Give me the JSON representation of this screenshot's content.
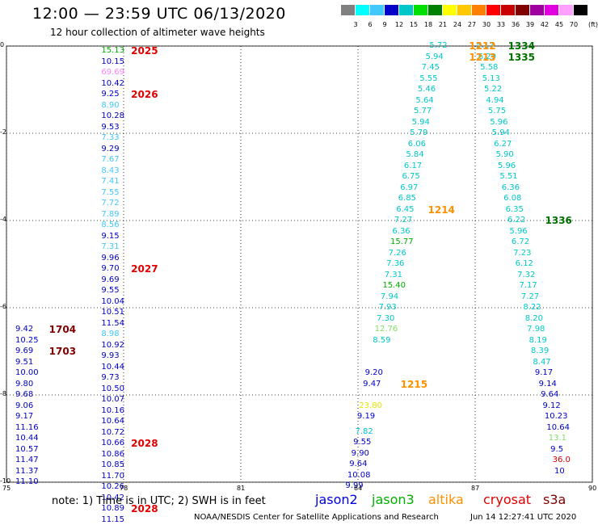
{
  "header": {
    "title": "12:00 — 23:59 UTC 06/13/2020",
    "subtitle": "12 hour collection of altimeter wave heights"
  },
  "color_scale": {
    "unit": "(ft)",
    "labels": [
      "3",
      "6",
      "9",
      "12",
      "15",
      "18",
      "21",
      "24",
      "27",
      "30",
      "33",
      "36",
      "39",
      "42",
      "45",
      "70"
    ],
    "colors": [
      "#808080",
      "#00ffff",
      "#40c8ff",
      "#0000c8",
      "#00c8c8",
      "#00e000",
      "#008000",
      "#ffff00",
      "#ffc800",
      "#ff8000",
      "#ff0000",
      "#c80000",
      "#800000",
      "#a000a0",
      "#e000e0",
      "#ffa0ff",
      "#000000"
    ]
  },
  "map": {
    "lon_ticks": [
      "75",
      "78",
      "81",
      "84",
      "87",
      "90"
    ],
    "lat_ticks": [
      "0",
      "-2",
      "-4",
      "-6",
      "-8",
      "-10"
    ],
    "lon_range": [
      75,
      90
    ],
    "lat_range": [
      -10,
      0
    ],
    "grid": true,
    "observations": [
      {
        "v": "15.13",
        "lon": 77.8,
        "lat": -0.12,
        "c": "#00b000"
      },
      {
        "v": "10.15",
        "lon": 77.8,
        "lat": -0.37,
        "c": "#0000c8"
      },
      {
        "v": "69.69",
        "lon": 77.8,
        "lat": -0.62,
        "c": "#ff80ff"
      },
      {
        "v": "10.42",
        "lon": 77.8,
        "lat": -0.87,
        "c": "#0000c8"
      },
      {
        "v": "9.25",
        "lon": 77.8,
        "lat": -1.12,
        "c": "#0000c8"
      },
      {
        "v": "8.90",
        "lon": 77.8,
        "lat": -1.37,
        "c": "#40c8ff"
      },
      {
        "v": "10.28",
        "lon": 77.8,
        "lat": -1.62,
        "c": "#0000c8"
      },
      {
        "v": "9.53",
        "lon": 77.8,
        "lat": -1.87,
        "c": "#0000c8"
      },
      {
        "v": "7.33",
        "lon": 77.8,
        "lat": -2.12,
        "c": "#40c8ff"
      },
      {
        "v": "9.29",
        "lon": 77.8,
        "lat": -2.37,
        "c": "#0000c8"
      },
      {
        "v": "7.67",
        "lon": 77.8,
        "lat": -2.62,
        "c": "#40c8ff"
      },
      {
        "v": "8.43",
        "lon": 77.8,
        "lat": -2.87,
        "c": "#40c8ff"
      },
      {
        "v": "7.41",
        "lon": 77.8,
        "lat": -3.12,
        "c": "#40c8ff"
      },
      {
        "v": "7.55",
        "lon": 77.8,
        "lat": -3.37,
        "c": "#40c8ff"
      },
      {
        "v": "7.72",
        "lon": 77.8,
        "lat": -3.62,
        "c": "#40c8ff"
      },
      {
        "v": "7.89",
        "lon": 77.8,
        "lat": -3.87,
        "c": "#40c8ff"
      },
      {
        "v": "8.56",
        "lon": 77.8,
        "lat": -4.12,
        "c": "#40c8ff"
      },
      {
        "v": "9.15",
        "lon": 77.8,
        "lat": -4.37,
        "c": "#0000c8"
      },
      {
        "v": "7.31",
        "lon": 77.8,
        "lat": -4.62,
        "c": "#40c8ff"
      },
      {
        "v": "9.96",
        "lon": 77.8,
        "lat": -4.87,
        "c": "#0000c8"
      },
      {
        "v": "9.70",
        "lon": 77.8,
        "lat": -5.12,
        "c": "#0000c8"
      },
      {
        "v": "9.69",
        "lon": 77.8,
        "lat": -5.37,
        "c": "#0000c8"
      },
      {
        "v": "9.55",
        "lon": 77.8,
        "lat": -5.62,
        "c": "#0000c8"
      },
      {
        "v": "10.04",
        "lon": 77.8,
        "lat": -5.87,
        "c": "#0000c8"
      },
      {
        "v": "10.51",
        "lon": 77.8,
        "lat": -6.12,
        "c": "#0000c8"
      },
      {
        "v": "11.54",
        "lon": 77.8,
        "lat": -6.37,
        "c": "#0000c8"
      },
      {
        "v": "8.98",
        "lon": 77.8,
        "lat": -6.62,
        "c": "#40c8ff"
      },
      {
        "v": "10.92",
        "lon": 77.8,
        "lat": -6.87,
        "c": "#0000c8"
      },
      {
        "v": "9.93",
        "lon": 77.8,
        "lat": -7.12,
        "c": "#0000c8"
      },
      {
        "v": "10.44",
        "lon": 77.8,
        "lat": -7.37,
        "c": "#0000c8"
      },
      {
        "v": "9.73",
        "lon": 77.8,
        "lat": -7.62,
        "c": "#0000c8"
      },
      {
        "v": "10.50",
        "lon": 77.8,
        "lat": -7.87,
        "c": "#0000c8"
      },
      {
        "v": "10.07",
        "lon": 77.8,
        "lat": -8.12,
        "c": "#0000c8"
      },
      {
        "v": "10.16",
        "lon": 77.8,
        "lat": -8.37,
        "c": "#0000c8"
      },
      {
        "v": "10.64",
        "lon": 77.8,
        "lat": -8.62,
        "c": "#0000c8"
      },
      {
        "v": "10.72",
        "lon": 77.8,
        "lat": -8.87,
        "c": "#0000c8"
      },
      {
        "v": "10.66",
        "lon": 77.8,
        "lat": -9.12,
        "c": "#0000c8"
      },
      {
        "v": "10.86",
        "lon": 77.8,
        "lat": -9.37,
        "c": "#0000c8"
      },
      {
        "v": "10.85",
        "lon": 77.8,
        "lat": -9.62,
        "c": "#0000c8"
      },
      {
        "v": "11.70",
        "lon": 77.8,
        "lat": -9.87,
        "c": "#0000c8"
      },
      {
        "v": "10.26",
        "lon": 77.8,
        "lat": -10.12,
        "c": "#0000c8"
      },
      {
        "v": "10.42",
        "lon": 77.8,
        "lat": -10.37,
        "c": "#0000c8"
      },
      {
        "v": "10.89",
        "lon": 77.8,
        "lat": -10.62,
        "c": "#0000c8"
      },
      {
        "v": "11.15",
        "lon": 77.8,
        "lat": -10.87,
        "c": "#0000c8"
      },
      {
        "v": "9.42",
        "lon": 75.6,
        "lat": -6.5,
        "c": "#0000c8"
      },
      {
        "v": "10.25",
        "lon": 75.6,
        "lat": -6.75,
        "c": "#0000c8"
      },
      {
        "v": "9.69",
        "lon": 75.6,
        "lat": -7.0,
        "c": "#0000c8"
      },
      {
        "v": "9.51",
        "lon": 75.6,
        "lat": -7.25,
        "c": "#0000c8"
      },
      {
        "v": "10.00",
        "lon": 75.6,
        "lat": -7.5,
        "c": "#0000c8"
      },
      {
        "v": "9.80",
        "lon": 75.6,
        "lat": -7.75,
        "c": "#0000c8"
      },
      {
        "v": "9.68",
        "lon": 75.6,
        "lat": -8.0,
        "c": "#0000c8"
      },
      {
        "v": "9.06",
        "lon": 75.6,
        "lat": -8.25,
        "c": "#0000c8"
      },
      {
        "v": "9.17",
        "lon": 75.6,
        "lat": -8.5,
        "c": "#0000c8"
      },
      {
        "v": "11.16",
        "lon": 75.6,
        "lat": -8.75,
        "c": "#0000c8"
      },
      {
        "v": "10.44",
        "lon": 75.6,
        "lat": -9.0,
        "c": "#0000c8"
      },
      {
        "v": "10.57",
        "lon": 75.6,
        "lat": -9.25,
        "c": "#0000c8"
      },
      {
        "v": "11.47",
        "lon": 75.6,
        "lat": -9.5,
        "c": "#0000c8"
      },
      {
        "v": "11.37",
        "lon": 75.6,
        "lat": -9.75,
        "c": "#0000c8"
      },
      {
        "v": "11.10",
        "lon": 75.6,
        "lat": -10.0,
        "c": "#0000c8"
      },
      {
        "v": "5.72",
        "lon": 86.2,
        "lat": 0.0,
        "c": "#00c8c8"
      },
      {
        "v": "5.94",
        "lon": 86.1,
        "lat": -0.25,
        "c": "#00c8c8"
      },
      {
        "v": "7.45",
        "lon": 86.0,
        "lat": -0.5,
        "c": "#00c8c8"
      },
      {
        "v": "5.55",
        "lon": 85.95,
        "lat": -0.75,
        "c": "#00c8c8"
      },
      {
        "v": "5.46",
        "lon": 85.9,
        "lat": -1.0,
        "c": "#00c8c8"
      },
      {
        "v": "5.64",
        "lon": 85.85,
        "lat": -1.25,
        "c": "#00c8c8"
      },
      {
        "v": "5.77",
        "lon": 85.8,
        "lat": -1.5,
        "c": "#00c8c8"
      },
      {
        "v": "5.94",
        "lon": 85.75,
        "lat": -1.75,
        "c": "#00c8c8"
      },
      {
        "v": "5.79",
        "lon": 85.7,
        "lat": -2.0,
        "c": "#00c8c8"
      },
      {
        "v": "6.06",
        "lon": 85.65,
        "lat": -2.25,
        "c": "#00c8c8"
      },
      {
        "v": "5.84",
        "lon": 85.6,
        "lat": -2.5,
        "c": "#00c8c8"
      },
      {
        "v": "6.17",
        "lon": 85.55,
        "lat": -2.75,
        "c": "#00c8c8"
      },
      {
        "v": "6.75",
        "lon": 85.5,
        "lat": -3.0,
        "c": "#00c8c8"
      },
      {
        "v": "6.97",
        "lon": 85.45,
        "lat": -3.25,
        "c": "#00c8c8"
      },
      {
        "v": "6.85",
        "lon": 85.4,
        "lat": -3.5,
        "c": "#00c8c8"
      },
      {
        "v": "6.45",
        "lon": 85.35,
        "lat": -3.75,
        "c": "#00c8c8"
      },
      {
        "v": "7.27",
        "lon": 85.3,
        "lat": -4.0,
        "c": "#00c8c8"
      },
      {
        "v": "6.36",
        "lon": 85.25,
        "lat": -4.25,
        "c": "#00c8c8"
      },
      {
        "v": "15.77",
        "lon": 85.2,
        "lat": -4.5,
        "c": "#00b000"
      },
      {
        "v": "7.26",
        "lon": 85.15,
        "lat": -4.75,
        "c": "#00c8c8"
      },
      {
        "v": "7.36",
        "lon": 85.1,
        "lat": -5.0,
        "c": "#00c8c8"
      },
      {
        "v": "7.31",
        "lon": 85.05,
        "lat": -5.25,
        "c": "#00c8c8"
      },
      {
        "v": "15.40",
        "lon": 85.0,
        "lat": -5.5,
        "c": "#00b000"
      },
      {
        "v": "7.94",
        "lon": 84.95,
        "lat": -5.75,
        "c": "#00c8c8"
      },
      {
        "v": "7.93",
        "lon": 84.9,
        "lat": -6.0,
        "c": "#00c8c8"
      },
      {
        "v": "7.30",
        "lon": 84.85,
        "lat": -6.25,
        "c": "#00c8c8"
      },
      {
        "v": "12.76",
        "lon": 84.8,
        "lat": -6.5,
        "c": "#80e060"
      },
      {
        "v": "8.59",
        "lon": 84.75,
        "lat": -6.75,
        "c": "#00c8c8"
      },
      {
        "v": "9.20",
        "lon": 84.55,
        "lat": -7.5,
        "c": "#0000c8"
      },
      {
        "v": "9.47",
        "lon": 84.5,
        "lat": -7.75,
        "c": "#0000c8"
      },
      {
        "v": "23.80",
        "lon": 84.4,
        "lat": -8.25,
        "c": "#e6e600"
      },
      {
        "v": "9.19",
        "lon": 84.35,
        "lat": -8.5,
        "c": "#0000c8"
      },
      {
        "v": "7.82",
        "lon": 84.3,
        "lat": -8.85,
        "c": "#00c8c8"
      },
      {
        "v": "9.55",
        "lon": 84.25,
        "lat": -9.1,
        "c": "#0000c8"
      },
      {
        "v": "9.90",
        "lon": 84.2,
        "lat": -9.35,
        "c": "#0000c8"
      },
      {
        "v": "9.64",
        "lon": 84.15,
        "lat": -9.6,
        "c": "#0000c8"
      },
      {
        "v": "10.08",
        "lon": 84.1,
        "lat": -9.85,
        "c": "#0000c8"
      },
      {
        "v": "9.99",
        "lon": 84.05,
        "lat": -10.1,
        "c": "#0000c8"
      },
      {
        "v": "5.17",
        "lon": 87.4,
        "lat": 0.0,
        "c": "#00c8c8"
      },
      {
        "v": "6.29",
        "lon": 87.45,
        "lat": -0.25,
        "c": "#00c8c8"
      },
      {
        "v": "5.58",
        "lon": 87.5,
        "lat": -0.5,
        "c": "#00c8c8"
      },
      {
        "v": "5.13",
        "lon": 87.55,
        "lat": -0.75,
        "c": "#00c8c8"
      },
      {
        "v": "5.22",
        "lon": 87.6,
        "lat": -1.0,
        "c": "#00c8c8"
      },
      {
        "v": "4.94",
        "lon": 87.65,
        "lat": -1.25,
        "c": "#00c8c8"
      },
      {
        "v": "5.75",
        "lon": 87.7,
        "lat": -1.5,
        "c": "#00c8c8"
      },
      {
        "v": "5.96",
        "lon": 87.75,
        "lat": -1.75,
        "c": "#00c8c8"
      },
      {
        "v": "5.94",
        "lon": 87.8,
        "lat": -2.0,
        "c": "#00c8c8"
      },
      {
        "v": "6.27",
        "lon": 87.85,
        "lat": -2.25,
        "c": "#00c8c8"
      },
      {
        "v": "5.90",
        "lon": 87.9,
        "lat": -2.5,
        "c": "#00c8c8"
      },
      {
        "v": "5.96",
        "lon": 87.95,
        "lat": -2.75,
        "c": "#00c8c8"
      },
      {
        "v": "5.51",
        "lon": 88.0,
        "lat": -3.0,
        "c": "#00c8c8"
      },
      {
        "v": "6.36",
        "lon": 88.05,
        "lat": -3.25,
        "c": "#00c8c8"
      },
      {
        "v": "6.08",
        "lon": 88.1,
        "lat": -3.5,
        "c": "#00c8c8"
      },
      {
        "v": "6.35",
        "lon": 88.15,
        "lat": -3.75,
        "c": "#00c8c8"
      },
      {
        "v": "6.22",
        "lon": 88.2,
        "lat": -4.0,
        "c": "#00c8c8"
      },
      {
        "v": "5.96",
        "lon": 88.25,
        "lat": -4.25,
        "c": "#00c8c8"
      },
      {
        "v": "6.72",
        "lon": 88.3,
        "lat": -4.5,
        "c": "#00c8c8"
      },
      {
        "v": "7.23",
        "lon": 88.35,
        "lat": -4.75,
        "c": "#00c8c8"
      },
      {
        "v": "6.12",
        "lon": 88.4,
        "lat": -5.0,
        "c": "#00c8c8"
      },
      {
        "v": "7.32",
        "lon": 88.45,
        "lat": -5.25,
        "c": "#00c8c8"
      },
      {
        "v": "7.17",
        "lon": 88.5,
        "lat": -5.5,
        "c": "#00c8c8"
      },
      {
        "v": "7.27",
        "lon": 88.55,
        "lat": -5.75,
        "c": "#00c8c8"
      },
      {
        "v": "8.22",
        "lon": 88.6,
        "lat": -6.0,
        "c": "#00c8c8"
      },
      {
        "v": "8.20",
        "lon": 88.65,
        "lat": -6.25,
        "c": "#00c8c8"
      },
      {
        "v": "7.98",
        "lon": 88.7,
        "lat": -6.5,
        "c": "#00c8c8"
      },
      {
        "v": "8.19",
        "lon": 88.75,
        "lat": -6.75,
        "c": "#00c8c8"
      },
      {
        "v": "8.39",
        "lon": 88.8,
        "lat": -7.0,
        "c": "#00c8c8"
      },
      {
        "v": "8.47",
        "lon": 88.85,
        "lat": -7.25,
        "c": "#00c8c8"
      },
      {
        "v": "9.17",
        "lon": 88.9,
        "lat": -7.5,
        "c": "#0000c8"
      },
      {
        "v": "9.14",
        "lon": 89.0,
        "lat": -7.75,
        "c": "#0000c8"
      },
      {
        "v": "9.64",
        "lon": 89.05,
        "lat": -8.0,
        "c": "#0000c8"
      },
      {
        "v": "9.12",
        "lon": 89.1,
        "lat": -8.25,
        "c": "#0000c8"
      },
      {
        "v": "10.23",
        "lon": 89.15,
        "lat": -8.5,
        "c": "#0000c8"
      },
      {
        "v": "10.64",
        "lon": 89.2,
        "lat": -8.75,
        "c": "#0000c8"
      },
      {
        "v": "13.1",
        "lon": 89.25,
        "lat": -9.0,
        "c": "#80e060"
      },
      {
        "v": "9.5",
        "lon": 89.3,
        "lat": -9.25,
        "c": "#0000c8"
      },
      {
        "v": "36.0",
        "lon": 89.35,
        "lat": -9.5,
        "c": "#c80000"
      },
      {
        "v": "10",
        "lon": 89.4,
        "lat": -9.75,
        "c": "#0000c8"
      }
    ],
    "passes": [
      {
        "id": "2025",
        "lon": 77.9,
        "lat": -0.12,
        "c": "#e00000"
      },
      {
        "id": "2026",
        "lon": 77.9,
        "lat": -1.12,
        "c": "#e00000"
      },
      {
        "id": "2027",
        "lon": 77.9,
        "lat": -5.12,
        "c": "#e00000"
      },
      {
        "id": "2028",
        "lon": 77.9,
        "lat": -9.12,
        "c": "#e00000"
      },
      {
        "id": "2028",
        "lon": 77.9,
        "lat": -10.62,
        "c": "#e00000"
      },
      {
        "id": "1704",
        "lon": 75.8,
        "lat": -6.5,
        "c": "#800000"
      },
      {
        "id": "1703",
        "lon": 75.8,
        "lat": -7.0,
        "c": "#800000"
      },
      {
        "id": "1212",
        "lon": 86.55,
        "lat": 0.0,
        "c": "#ff9000"
      },
      {
        "id": "1213",
        "lon": 86.55,
        "lat": -0.25,
        "c": "#ff9000"
      },
      {
        "id": "1214",
        "lon": 85.5,
        "lat": -3.75,
        "c": "#ff9000"
      },
      {
        "id": "1215",
        "lon": 84.8,
        "lat": -7.75,
        "c": "#ff9000"
      },
      {
        "id": "1334",
        "lon": 87.55,
        "lat": 0.0,
        "c": "#007000"
      },
      {
        "id": "1335",
        "lon": 87.55,
        "lat": -0.25,
        "c": "#007000"
      },
      {
        "id": "1336",
        "lon": 88.5,
        "lat": -4.0,
        "c": "#007000"
      }
    ]
  },
  "footer": {
    "note": "note:  1) Time is in UTC; 2) SWH is in feet",
    "legend": [
      {
        "label": "jason2",
        "color": "#0000e0"
      },
      {
        "label": "jason3",
        "color": "#00b000"
      },
      {
        "label": "altika",
        "color": "#ff9000"
      },
      {
        "label": "cryosat",
        "color": "#e00000"
      },
      {
        "label": "s3a",
        "color": "#800000"
      }
    ],
    "credit": "NOAA/NESDIS Center for Satellite Applications and Research",
    "timestamp": "Jun 14 12:27:41 UTC 2020"
  }
}
